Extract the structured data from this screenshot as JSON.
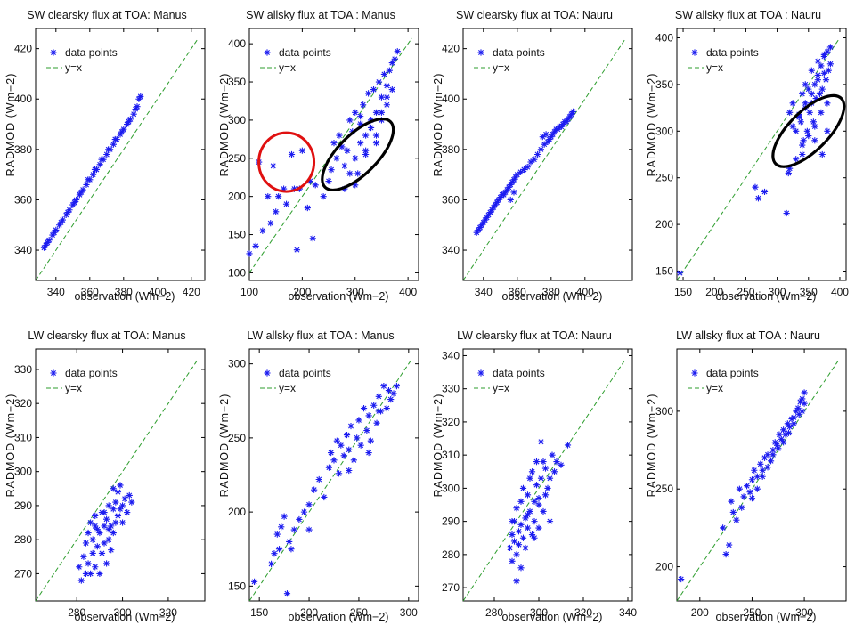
{
  "chart_data": [
    {
      "type": "scatter",
      "title": "SW clearsky flux at TOA: Manus",
      "xlabel": "observation (Wm−2)",
      "ylabel": "RADMOD (Wm−2)",
      "xlim": [
        328,
        428
      ],
      "ylim": [
        328,
        428
      ],
      "xticks": [
        340,
        360,
        380,
        400,
        420
      ],
      "yticks": [
        340,
        360,
        380,
        400,
        420
      ],
      "legend": [
        "data points",
        "y=x"
      ],
      "legend_position": "top-left",
      "series": [
        {
          "name": "data points",
          "x": [
            333,
            334,
            336,
            338,
            340,
            342,
            344,
            346,
            348,
            350,
            352,
            354,
            356,
            358,
            360,
            362,
            364,
            366,
            368,
            370,
            372,
            374,
            376,
            378,
            380,
            382,
            384,
            386,
            388,
            390,
            335,
            339,
            343,
            347,
            351,
            355,
            359,
            363,
            367,
            371,
            375,
            379,
            383,
            387,
            389
          ],
          "y": [
            341,
            342,
            344,
            346,
            348,
            350,
            352,
            354,
            356,
            358,
            360,
            362,
            364,
            366,
            368,
            370,
            372,
            374,
            376,
            378,
            380,
            382,
            384,
            386,
            388,
            390,
            392,
            394,
            397,
            401,
            343,
            347,
            351,
            355,
            359,
            363,
            368,
            372,
            376,
            380,
            384,
            387,
            391,
            396,
            400
          ]
        }
      ]
    },
    {
      "type": "scatter",
      "title": "SW allsky flux at TOA : Manus",
      "xlabel": "observation (Wm−2)",
      "ylabel": "RADMOD (Wm−2)",
      "xlim": [
        100,
        420
      ],
      "ylim": [
        90,
        420
      ],
      "xticks": [
        100,
        200,
        300,
        400
      ],
      "yticks": [
        100,
        150,
        200,
        250,
        300,
        350,
        400
      ],
      "legend": [
        "data points",
        "y=x"
      ],
      "legend_position": "top-left",
      "annotations": [
        {
          "shape": "circle",
          "color": "red",
          "center": [
            170,
            245
          ]
        },
        {
          "shape": "ellipse",
          "color": "black",
          "center": [
            305,
            255
          ]
        }
      ],
      "series": [
        {
          "name": "data points",
          "x": [
            100,
            112,
            118,
            125,
            135,
            140,
            145,
            150,
            155,
            165,
            170,
            180,
            185,
            190,
            195,
            200,
            210,
            215,
            220,
            225,
            240,
            250,
            255,
            260,
            265,
            270,
            275,
            280,
            285,
            290,
            295,
            300,
            305,
            310,
            315,
            320,
            325,
            330,
            335,
            340,
            345,
            350,
            355,
            360,
            365,
            370,
            375,
            380,
            290,
            300,
            310,
            320,
            330,
            340,
            350,
            360,
            370,
            280,
            300,
            320,
            340,
            360,
            310,
            330,
            350
          ],
          "y": [
            125,
            135,
            245,
            155,
            200,
            165,
            240,
            180,
            200,
            210,
            190,
            255,
            210,
            130,
            210,
            260,
            185,
            220,
            145,
            215,
            200,
            220,
            235,
            270,
            250,
            280,
            265,
            240,
            260,
            300,
            285,
            310,
            230,
            295,
            320,
            280,
            335,
            300,
            340,
            310,
            350,
            330,
            360,
            345,
            365,
            375,
            380,
            390,
            230,
            250,
            270,
            260,
            290,
            280,
            300,
            320,
            340,
            210,
            215,
            255,
            270,
            330,
            305,
            300,
            310
          ]
        }
      ]
    },
    {
      "type": "scatter",
      "title": "SW clearsky flux at TOA: Nauru",
      "xlabel": "observation (Wm−2)",
      "ylabel": "RADMOD (Wm−2)",
      "xlim": [
        328,
        428
      ],
      "ylim": [
        328,
        428
      ],
      "xticks": [
        340,
        360,
        380,
        400
      ],
      "yticks": [
        340,
        360,
        380,
        400,
        420
      ],
      "legend": [
        "data points",
        "y=x"
      ],
      "legend_position": "top-left",
      "series": [
        {
          "name": "data points",
          "x": [
            336,
            337,
            338,
            339,
            340,
            341,
            342,
            343,
            344,
            345,
            346,
            347,
            348,
            349,
            350,
            351,
            352,
            353,
            354,
            355,
            356,
            357,
            358,
            359,
            360,
            362,
            364,
            366,
            368,
            370,
            372,
            374,
            376,
            378,
            380,
            382,
            384,
            386,
            388,
            390,
            391,
            392,
            393,
            375,
            377,
            379,
            381,
            383,
            385,
            387,
            389,
            356,
            358
          ],
          "y": [
            347,
            348,
            349,
            350,
            351,
            352,
            353,
            354,
            355,
            356,
            357,
            358,
            359,
            360,
            361,
            362,
            362,
            363,
            364,
            365,
            366,
            367,
            368,
            369,
            370,
            371,
            372,
            373,
            375,
            376,
            378,
            380,
            382,
            383,
            385,
            387,
            388,
            389,
            391,
            392,
            393,
            394,
            395,
            385,
            386,
            384,
            386,
            388,
            389,
            390,
            391,
            360,
            363
          ]
        }
      ]
    },
    {
      "type": "scatter",
      "title": "SW allsky flux at TOA : Nauru",
      "xlabel": "observation (Wm−2)",
      "ylabel": "RADMOD (Wm−2)",
      "xlim": [
        140,
        410
      ],
      "ylim": [
        140,
        410
      ],
      "xticks": [
        150,
        200,
        250,
        300,
        350,
        400
      ],
      "yticks": [
        150,
        200,
        250,
        300,
        350,
        400
      ],
      "legend": [
        "data points",
        "y=x"
      ],
      "legend_position": "top-left",
      "annotations": [
        {
          "shape": "ellipse",
          "color": "black",
          "center": [
            350,
            300
          ]
        }
      ],
      "series": [
        {
          "name": "data points",
          "x": [
            145,
            265,
            270,
            280,
            315,
            318,
            320,
            325,
            330,
            335,
            338,
            340,
            342,
            345,
            348,
            350,
            352,
            355,
            358,
            360,
            362,
            365,
            368,
            370,
            372,
            375,
            378,
            380,
            382,
            385,
            330,
            340,
            350,
            360,
            370,
            380,
            325,
            335,
            345,
            355,
            365,
            375,
            385,
            320,
            340,
            360,
            380,
            345,
            355,
            365,
            375,
            372
          ],
          "y": [
            148,
            240,
            228,
            235,
            212,
            255,
            320,
            330,
            300,
            315,
            310,
            340,
            290,
            325,
            300,
            345,
            320,
            330,
            310,
            350,
            335,
            360,
            340,
            370,
            345,
            380,
            355,
            385,
            365,
            390,
            270,
            285,
            295,
            305,
            320,
            330,
            305,
            318,
            330,
            340,
            355,
            362,
            372,
            260,
            275,
            290,
            300,
            350,
            365,
            375,
            382,
            275
          ]
        }
      ]
    },
    {
      "type": "scatter",
      "title": "LW clearsky flux at TOA: Manus",
      "xlabel": "observation (Wm−2)",
      "ylabel": "RADMOD (Wm−2)",
      "xlim": [
        262,
        336
      ],
      "ylim": [
        262,
        336
      ],
      "xticks": [
        280,
        300,
        320
      ],
      "yticks": [
        270,
        280,
        290,
        300,
        310,
        320,
        330
      ],
      "legend": [
        "data points",
        "y=x"
      ],
      "legend_position": "top-left",
      "series": [
        {
          "name": "data points",
          "x": [
            281,
            282,
            283,
            284,
            284,
            285,
            285,
            286,
            286,
            287,
            287,
            288,
            288,
            289,
            289,
            290,
            290,
            291,
            291,
            292,
            292,
            293,
            293,
            294,
            294,
            295,
            295,
            296,
            296,
            297,
            297,
            298,
            298,
            299,
            299,
            300,
            300,
            301,
            302,
            303,
            304,
            296,
            292,
            288,
            294
          ],
          "y": [
            272,
            268,
            275,
            270,
            279,
            273,
            282,
            270,
            285,
            276,
            280,
            272,
            287,
            278,
            283,
            270,
            282,
            276,
            288,
            279,
            284,
            273,
            286,
            280,
            290,
            277,
            284,
            282,
            289,
            285,
            291,
            287,
            294,
            289,
            296,
            290,
            285,
            292,
            288,
            293,
            291,
            295,
            288,
            284,
            283
          ]
        }
      ]
    },
    {
      "type": "scatter",
      "title": "LW allsky flux at TOA : Manus",
      "xlabel": "observation (Wm−2)",
      "ylabel": "RADMOD (Wm−2)",
      "xlim": [
        140,
        310
      ],
      "ylim": [
        140,
        310
      ],
      "xticks": [
        150,
        200,
        250,
        300
      ],
      "yticks": [
        150,
        200,
        250,
        300
      ],
      "legend": [
        "data points",
        "y=x"
      ],
      "legend_position": "top-left",
      "series": [
        {
          "name": "data points",
          "x": [
            145,
            162,
            165,
            168,
            170,
            172,
            175,
            178,
            180,
            182,
            185,
            190,
            195,
            200,
            205,
            210,
            215,
            220,
            222,
            225,
            228,
            230,
            232,
            235,
            238,
            240,
            242,
            245,
            248,
            250,
            252,
            255,
            258,
            260,
            262,
            265,
            268,
            270,
            272,
            275,
            278,
            280,
            282,
            285,
            288,
            200,
            240,
            260,
            270
          ],
          "y": [
            153,
            165,
            172,
            185,
            175,
            190,
            197,
            145,
            180,
            175,
            188,
            195,
            200,
            205,
            215,
            222,
            210,
            230,
            240,
            235,
            248,
            226,
            245,
            238,
            252,
            242,
            258,
            235,
            250,
            262,
            245,
            270,
            255,
            265,
            248,
            272,
            260,
            278,
            268,
            285,
            270,
            282,
            276,
            280,
            285,
            188,
            228,
            240,
            268
          ]
        }
      ]
    },
    {
      "type": "scatter",
      "title": "LW clearsky flux at TOA: Nauru",
      "xlabel": "observation (Wm−2)",
      "ylabel": "RADMOD (Wm−2)",
      "xlim": [
        266,
        342
      ],
      "ylim": [
        266,
        342
      ],
      "xticks": [
        280,
        300,
        320,
        340
      ],
      "yticks": [
        270,
        280,
        290,
        300,
        310,
        320,
        330,
        340
      ],
      "legend": [
        "data points",
        "y=x"
      ],
      "legend_position": "top-left",
      "series": [
        {
          "name": "data points",
          "x": [
            287,
            288,
            288,
            289,
            289,
            290,
            290,
            291,
            291,
            292,
            292,
            293,
            293,
            294,
            294,
            295,
            295,
            296,
            296,
            297,
            297,
            298,
            298,
            299,
            299,
            300,
            300,
            301,
            301,
            302,
            302,
            303,
            303,
            304,
            305,
            306,
            307,
            308,
            310,
            313,
            290,
            295,
            300,
            305,
            292,
            298,
            288
          ],
          "y": [
            282,
            278,
            286,
            284,
            290,
            280,
            294,
            287,
            283,
            296,
            289,
            285,
            300,
            291,
            282,
            298,
            288,
            303,
            293,
            286,
            305,
            296,
            290,
            308,
            301,
            297,
            288,
            303,
            314,
            293,
            308,
            298,
            306,
            300,
            303,
            310,
            305,
            308,
            307,
            313,
            272,
            292,
            295,
            290,
            276,
            285,
            290
          ]
        }
      ]
    },
    {
      "type": "scatter",
      "title": "LW allsky flux at TOA : Nauru",
      "xlabel": "observation (Wm−2)",
      "ylabel": "RADMOD (Wm−2)",
      "xlim": [
        178,
        340
      ],
      "ylim": [
        178,
        340
      ],
      "xticks": [
        200,
        250,
        300
      ],
      "yticks": [
        200,
        250,
        300
      ],
      "legend": [
        "data points",
        "y=x"
      ],
      "legend_position": "top-left",
      "series": [
        {
          "name": "data points",
          "x": [
            182,
            222,
            225,
            228,
            230,
            232,
            235,
            238,
            240,
            242,
            245,
            248,
            250,
            252,
            255,
            258,
            260,
            262,
            265,
            268,
            270,
            272,
            274,
            276,
            278,
            280,
            282,
            284,
            286,
            288,
            290,
            292,
            294,
            296,
            298,
            300,
            300,
            298,
            295,
            290,
            285,
            280,
            275,
            270,
            265,
            260,
            255,
            250
          ],
          "y": [
            192,
            225,
            208,
            214,
            242,
            235,
            230,
            250,
            238,
            245,
            252,
            248,
            256,
            262,
            258,
            266,
            262,
            270,
            272,
            268,
            275,
            280,
            278,
            285,
            282,
            288,
            285,
            292,
            290,
            295,
            296,
            300,
            302,
            306,
            308,
            312,
            305,
            300,
            298,
            292,
            286,
            280,
            276,
            272,
            264,
            258,
            250,
            244
          ]
        }
      ]
    }
  ]
}
